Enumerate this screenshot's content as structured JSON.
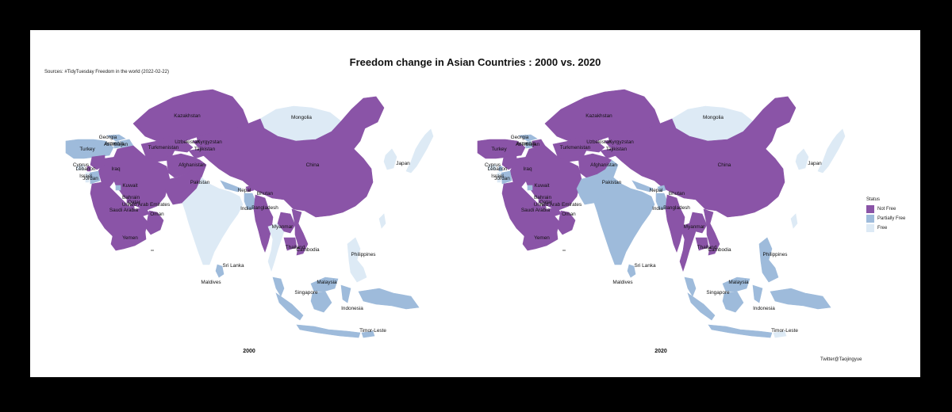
{
  "title": "Freedom change in Asian Countries : 2000 vs. 2020",
  "source": "Sources: #TidyTuesday  Freedom in the world (2022-02-22)",
  "caption": "Twitter@Taojingyue",
  "legend": {
    "title": "Status",
    "items": [
      {
        "label": "Not Free",
        "color": "#8a54a7"
      },
      {
        "label": "Partially Free",
        "color": "#9ebbdb"
      },
      {
        "label": "Free",
        "color": "#ddeaf5"
      }
    ]
  },
  "maps": [
    {
      "year": "2000",
      "status": {
        "Kazakhstan": "Not Free",
        "Mongolia": "Free",
        "China": "Not Free",
        "Japan": "Free",
        "Turkey": "Partially Free",
        "Georgia": "Partially Free",
        "Armenia": "Partially Free",
        "Azerbaijan": "Partially Free",
        "Uzbekistan": "Not Free",
        "Kyrgyzstan": "Not Free",
        "Turkmenistan": "Not Free",
        "Tajikistan": "Not Free",
        "Afghanistan": "Not Free",
        "Pakistan": "Not Free",
        "Iran": "Not Free",
        "Iraq": "Not Free",
        "Syria": "Not Free",
        "Cyprus": "Free",
        "Lebanon": "Not Free",
        "Israel": "Free",
        "Jordan": "Partially Free",
        "Saudi Arabia": "Not Free",
        "Kuwait": "Partially Free",
        "Bahrain": "Not Free",
        "Qatar": "Not Free",
        "United Arab Emirates": "Not Free",
        "Oman": "Not Free",
        "Yemen": "Not Free",
        "India": "Free",
        "Nepal": "Partially Free",
        "Bhutan": "Not Free",
        "Bangladesh": "Partially Free",
        "Sri Lanka": "Partially Free",
        "Myanmar": "Not Free",
        "Thailand": "Free",
        "Cambodia": "Not Free",
        "Laos": "Not Free",
        "Vietnam": "Not Free",
        "Malaysia": "Partially Free",
        "Indonesia": "Partially Free",
        "Philippines": "Free",
        "Timor-Leste": "Partially Free",
        "Korea": "Free",
        "Taiwan": "Free"
      }
    },
    {
      "year": "2020",
      "status": {
        "Kazakhstan": "Not Free",
        "Mongolia": "Free",
        "China": "Not Free",
        "Japan": "Free",
        "Turkey": "Not Free",
        "Georgia": "Partially Free",
        "Armenia": "Partially Free",
        "Azerbaijan": "Not Free",
        "Uzbekistan": "Not Free",
        "Kyrgyzstan": "Not Free",
        "Turkmenistan": "Not Free",
        "Tajikistan": "Not Free",
        "Afghanistan": "Not Free",
        "Pakistan": "Partially Free",
        "Iran": "Not Free",
        "Iraq": "Not Free",
        "Syria": "Not Free",
        "Cyprus": "Free",
        "Lebanon": "Partially Free",
        "Israel": "Free",
        "Jordan": "Partially Free",
        "Saudi Arabia": "Not Free",
        "Kuwait": "Partially Free",
        "Bahrain": "Not Free",
        "Qatar": "Not Free",
        "United Arab Emirates": "Not Free",
        "Oman": "Not Free",
        "Yemen": "Not Free",
        "India": "Partially Free",
        "Nepal": "Partially Free",
        "Bhutan": "Partially Free",
        "Bangladesh": "Partially Free",
        "Sri Lanka": "Partially Free",
        "Myanmar": "Not Free",
        "Thailand": "Not Free",
        "Cambodia": "Not Free",
        "Laos": "Not Free",
        "Vietnam": "Not Free",
        "Malaysia": "Partially Free",
        "Indonesia": "Partially Free",
        "Philippines": "Partially Free",
        "Timor-Leste": "Free",
        "Korea": "Free",
        "Taiwan": "Free"
      }
    }
  ],
  "labels": [
    "Kazakhstan",
    "Mongolia",
    "Georgia",
    "Armenia",
    "Azerbaijan",
    "Uzbekistan",
    "Kyrgyzstan",
    "Turkey",
    "Turkmenistan",
    "Tajikistan",
    "Cyprus",
    "Lebanon",
    "Israel",
    "Jordan",
    "Iraq",
    "Afghanistan",
    "China",
    "Japan",
    "Pakistan",
    "Kuwait",
    "Nepal",
    "Bhutan",
    "Bahrain",
    "Qatar",
    "United Arab Emirates",
    "India",
    "Bangladesh",
    "Saudi Arabia",
    "Oman",
    "Myanmar",
    "Yemen",
    "Thailand",
    "Cambodia",
    "Philippines",
    "Sri Lanka",
    "Maldives",
    "Malaysia",
    "Singapore",
    "Indonesia",
    "Timor-Leste"
  ]
}
